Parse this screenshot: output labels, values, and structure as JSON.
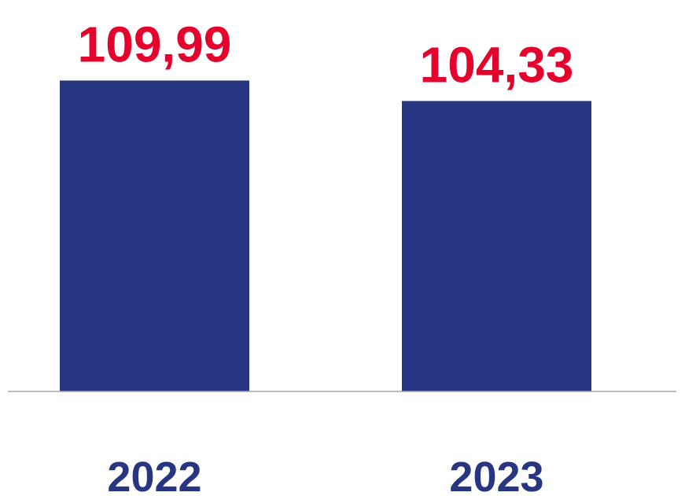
{
  "chart_data": {
    "type": "bar",
    "categories": [
      "2022",
      "2023"
    ],
    "values": [
      109.99,
      104.33
    ],
    "value_labels": [
      "109,99",
      "104,33"
    ],
    "color": "#283580",
    "label_color": "#e3032d",
    "category_color": "#283580",
    "ylim": [
      24,
      114
    ]
  }
}
